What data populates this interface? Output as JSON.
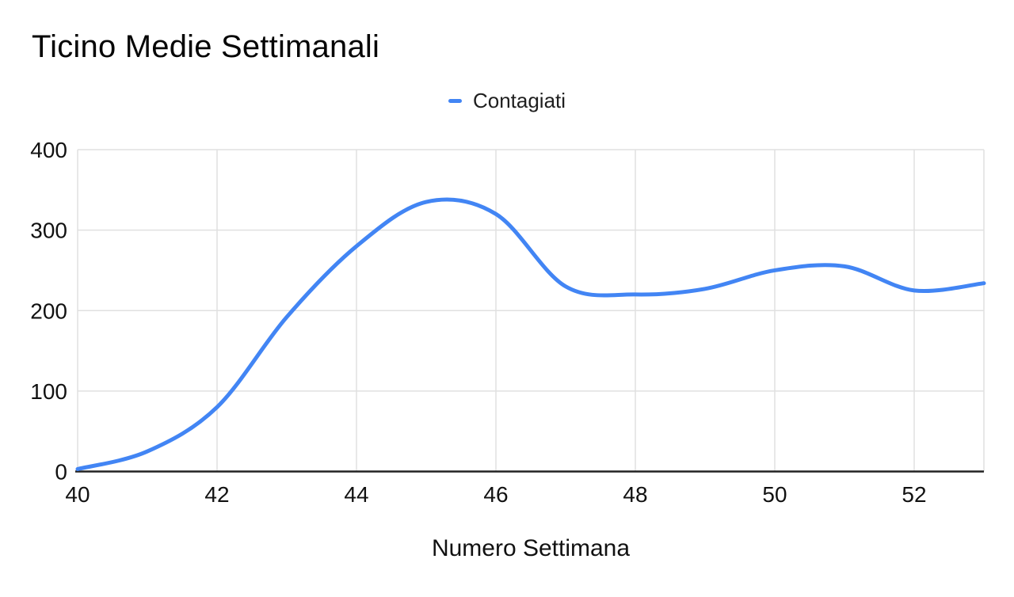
{
  "chart_data": {
    "type": "line",
    "title": "Ticino Medie Settimanali",
    "xlabel": "Numero Settimana",
    "ylabel": "",
    "legend_position": "top-center",
    "grid": true,
    "smooth": true,
    "xlim": [
      40,
      53
    ],
    "ylim": [
      0,
      400
    ],
    "xticks": [
      40,
      42,
      44,
      46,
      48,
      50,
      52
    ],
    "yticks": [
      0,
      100,
      200,
      300,
      400
    ],
    "x": [
      40,
      41,
      42,
      43,
      44,
      45,
      46,
      47,
      48,
      49,
      50,
      51,
      52,
      53
    ],
    "series": [
      {
        "name": "Contagiati",
        "values": [
          3,
          25,
          80,
          192,
          280,
          335,
          320,
          230,
          220,
          227,
          250,
          255,
          225,
          234
        ]
      }
    ],
    "colors": {
      "series": "#4285f4",
      "gridline": "#e0e0e0",
      "axis_line": "#222222",
      "tick_text": "#111111",
      "title_text": "#050505"
    }
  }
}
